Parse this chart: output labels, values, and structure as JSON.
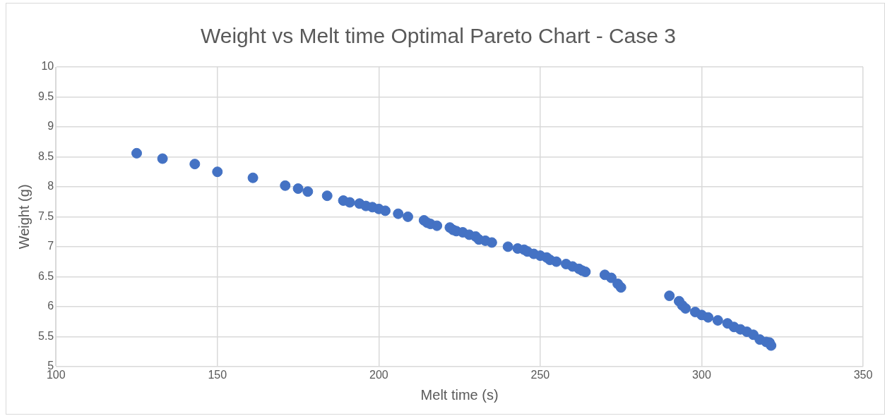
{
  "chart_data": {
    "type": "scatter",
    "title": "Weight vs Melt time Optimal Pareto Chart - Case 3",
    "xlabel": "Melt time (s)",
    "ylabel": "Weight (g)",
    "x": [
      125,
      133,
      143,
      150,
      161,
      171,
      175,
      178,
      184,
      189,
      191,
      194,
      196,
      198,
      200,
      202,
      206,
      209,
      214,
      215,
      216,
      218,
      222,
      223,
      224,
      226,
      228,
      230,
      231,
      233,
      235,
      240,
      243,
      245,
      246,
      248,
      250,
      252,
      253,
      255,
      258,
      260,
      262,
      263,
      264,
      270,
      272,
      274,
      275,
      290,
      293,
      294,
      295,
      298,
      300,
      302,
      305,
      308,
      310,
      312,
      314,
      316,
      318,
      320,
      321,
      321.5
    ],
    "series": [
      {
        "color": "#4472c4",
        "values": [
          8.56,
          8.47,
          8.38,
          8.25,
          8.15,
          8.02,
          7.97,
          7.92,
          7.85,
          7.77,
          7.74,
          7.72,
          7.68,
          7.66,
          7.63,
          7.6,
          7.55,
          7.5,
          7.44,
          7.4,
          7.38,
          7.35,
          7.32,
          7.28,
          7.26,
          7.24,
          7.2,
          7.17,
          7.12,
          7.1,
          7.07,
          7.0,
          6.97,
          6.95,
          6.92,
          6.88,
          6.85,
          6.82,
          6.78,
          6.75,
          6.71,
          6.67,
          6.63,
          6.6,
          6.58,
          6.53,
          6.48,
          6.38,
          6.32,
          6.18,
          6.09,
          6.02,
          5.97,
          5.91,
          5.86,
          5.82,
          5.77,
          5.72,
          5.66,
          5.62,
          5.58,
          5.53,
          5.45,
          5.41,
          5.4,
          5.35
        ]
      }
    ],
    "xlim": [
      100,
      350
    ],
    "xticks": [
      100,
      150,
      200,
      250,
      300,
      350
    ],
    "ylim": [
      5,
      10
    ],
    "yticks": [
      5,
      5.5,
      6,
      6.5,
      7,
      7.5,
      8,
      8.5,
      9,
      9.5,
      10
    ],
    "grid": true,
    "legend": false,
    "marker": "circle"
  }
}
